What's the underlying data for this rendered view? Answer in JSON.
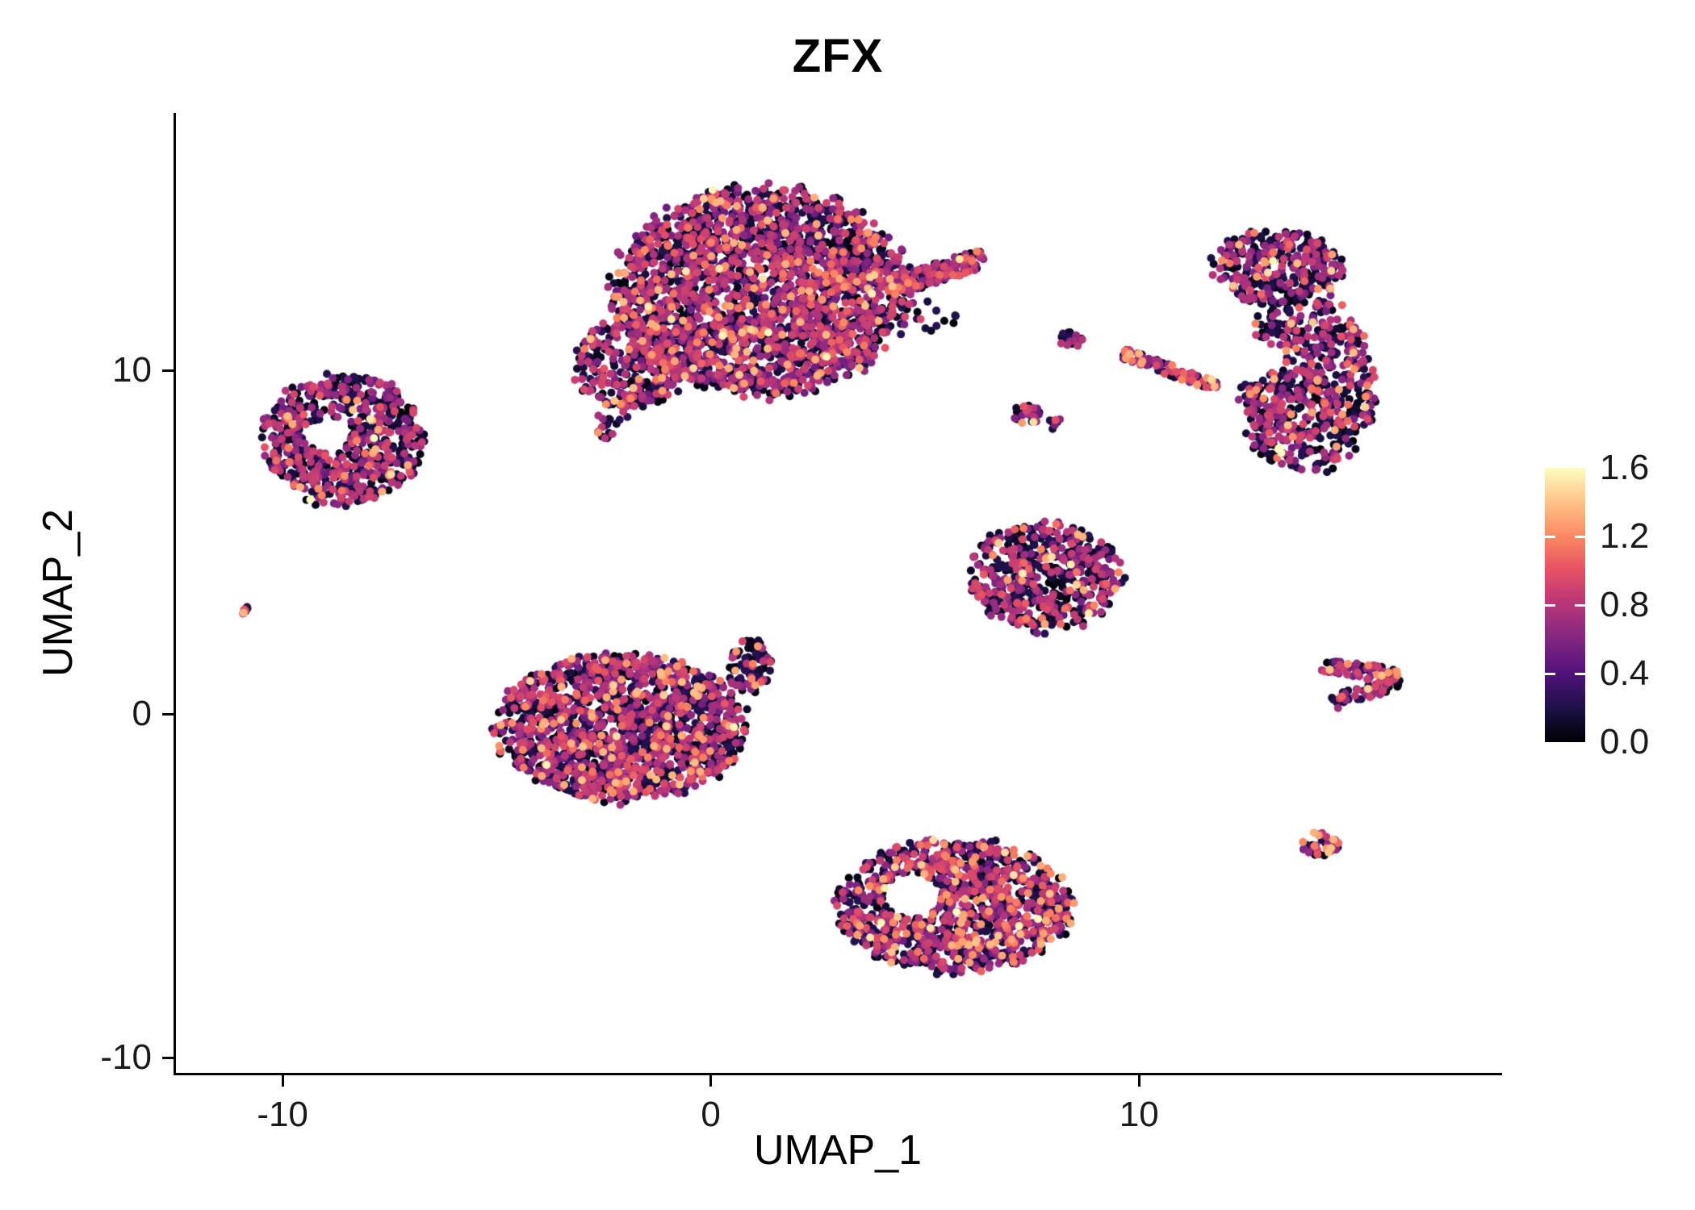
{
  "chart_data": {
    "type": "scatter",
    "title": "ZFX",
    "xlabel": "UMAP_1",
    "ylabel": "UMAP_2",
    "xlim": [
      -12.49,
      18.42
    ],
    "ylim": [
      -10.44,
      17.49
    ],
    "grid": false,
    "legend_position": "right",
    "x_ticks": [
      {
        "value": -10,
        "label": "-10"
      },
      {
        "value": 0,
        "label": "0"
      },
      {
        "value": 10,
        "label": "10"
      }
    ],
    "y_ticks": [
      {
        "value": -10,
        "label": "-10"
      },
      {
        "value": 0,
        "label": "0"
      },
      {
        "value": 10,
        "label": "10"
      }
    ],
    "point_radius_px": 5,
    "colorbar": {
      "min": 0.0,
      "max": 1.6,
      "ticks": [
        {
          "value": 0.0,
          "label": "0.0"
        },
        {
          "value": 0.4,
          "label": "0.4"
        },
        {
          "value": 0.8,
          "label": "0.8"
        },
        {
          "value": 1.2,
          "label": "1.2"
        },
        {
          "value": 1.6,
          "label": "1.6"
        }
      ],
      "colormap": "magma",
      "stops": [
        [
          0.0,
          "#000004"
        ],
        [
          0.125,
          "#1d1147"
        ],
        [
          0.25,
          "#51127c"
        ],
        [
          0.375,
          "#822681"
        ],
        [
          0.5,
          "#b63679"
        ],
        [
          0.625,
          "#e55064"
        ],
        [
          0.75,
          "#fb8861"
        ],
        [
          0.875,
          "#fec287"
        ],
        [
          1.0,
          "#fcfdbf"
        ]
      ]
    },
    "clusters": [
      {
        "name": "top-main",
        "type": "blob",
        "cx": 1.2,
        "cy": 12.3,
        "rx": 3.4,
        "ry": 3.0,
        "n": 2600,
        "expr": {
          "p_zero": 0.5,
          "p_mid": 0.42,
          "p_high": 0.08
        }
      },
      {
        "name": "top-left-lobe",
        "type": "blob",
        "cx": -1.9,
        "cy": 10.2,
        "rx": 1.3,
        "ry": 1.3,
        "n": 260,
        "expr": {
          "p_zero": 0.5,
          "p_mid": 0.42,
          "p_high": 0.08
        }
      },
      {
        "name": "top-tip",
        "type": "line",
        "x1": -1.2,
        "y1": 9.9,
        "x2": -2.7,
        "y2": 8.2,
        "w": 0.35,
        "n": 60,
        "expr": {
          "p_zero": 0.55,
          "p_mid": 0.38,
          "p_high": 0.07
        }
      },
      {
        "name": "top-arm",
        "type": "line",
        "x1": 4.2,
        "y1": 12.4,
        "x2": 6.4,
        "y2": 13.3,
        "w": 0.28,
        "n": 130,
        "expr": {
          "p_zero": 0.4,
          "p_mid": 0.45,
          "p_high": 0.15
        }
      },
      {
        "name": "top-stray-dots",
        "type": "blob",
        "cx": 5.3,
        "cy": 11.6,
        "rx": 0.6,
        "ry": 0.45,
        "n": 12,
        "expr": {
          "p_zero": 0.85,
          "p_mid": 0.15,
          "p_high": 0.0
        }
      },
      {
        "name": "left",
        "type": "blob",
        "cx": -8.6,
        "cy": 8.0,
        "rx": 1.85,
        "ry": 1.9,
        "n": 680,
        "hole": {
          "cx": -8.95,
          "cy": 8.1,
          "r": 0.5
        },
        "expr": {
          "p_zero": 0.52,
          "p_mid": 0.4,
          "p_high": 0.08
        }
      },
      {
        "name": "far-left-dot",
        "type": "blob",
        "cx": -10.85,
        "cy": 3.0,
        "rx": 0.18,
        "ry": 0.15,
        "n": 7,
        "expr": {
          "p_zero": 0.25,
          "p_mid": 0.3,
          "p_high": 0.45
        }
      },
      {
        "name": "mid-left",
        "type": "blob",
        "cx": -2.1,
        "cy": -0.4,
        "rx": 2.9,
        "ry": 2.1,
        "n": 1600,
        "expr": {
          "p_zero": 0.52,
          "p_mid": 0.38,
          "p_high": 0.1
        }
      },
      {
        "name": "mid-left-tip",
        "type": "blob",
        "cx": 0.9,
        "cy": 1.4,
        "rx": 0.55,
        "ry": 0.75,
        "n": 100,
        "expr": {
          "p_zero": 0.62,
          "p_mid": 0.33,
          "p_high": 0.05
        }
      },
      {
        "name": "bottom",
        "type": "blob",
        "cx": 5.7,
        "cy": -5.6,
        "rx": 2.7,
        "ry": 1.9,
        "n": 1150,
        "hole": {
          "cx": 4.7,
          "cy": -5.3,
          "r": 0.65
        },
        "expr": {
          "p_zero": 0.48,
          "p_mid": 0.38,
          "p_high": 0.14
        }
      },
      {
        "name": "mid-right",
        "type": "blob",
        "cx": 7.8,
        "cy": 4.0,
        "rx": 1.8,
        "ry": 1.6,
        "n": 560,
        "expr": {
          "p_zero": 0.54,
          "p_mid": 0.38,
          "p_high": 0.08
        }
      },
      {
        "name": "right-top-lobe",
        "type": "blob",
        "cx": 13.2,
        "cy": 13.0,
        "rx": 1.5,
        "ry": 1.1,
        "n": 330,
        "expr": {
          "p_zero": 0.55,
          "p_mid": 0.38,
          "p_high": 0.07
        }
      },
      {
        "name": "right-main",
        "type": "blob",
        "cx": 13.9,
        "cy": 9.6,
        "rx": 1.6,
        "ry": 2.6,
        "n": 620,
        "hole": {
          "cx": 12.5,
          "cy": 10.3,
          "r": 0.7
        },
        "expr": {
          "p_zero": 0.55,
          "p_mid": 0.38,
          "p_high": 0.07
        }
      },
      {
        "name": "mid-streak",
        "type": "line",
        "x1": 9.6,
        "y1": 10.5,
        "x2": 11.9,
        "y2": 9.5,
        "w": 0.16,
        "n": 90,
        "expr": {
          "p_zero": 0.35,
          "p_mid": 0.45,
          "p_high": 0.2
        }
      },
      {
        "name": "tiny-upper",
        "type": "blob",
        "cx": 8.4,
        "cy": 10.9,
        "rx": 0.3,
        "ry": 0.25,
        "n": 22,
        "expr": {
          "p_zero": 0.75,
          "p_mid": 0.2,
          "p_high": 0.05
        }
      },
      {
        "name": "tiny-lower",
        "type": "blob",
        "cx": 7.4,
        "cy": 8.7,
        "rx": 0.35,
        "ry": 0.3,
        "n": 26,
        "expr": {
          "p_zero": 0.6,
          "p_mid": 0.3,
          "p_high": 0.1
        }
      },
      {
        "name": "tiny-lower-b",
        "type": "blob",
        "cx": 8.05,
        "cy": 8.45,
        "rx": 0.18,
        "ry": 0.18,
        "n": 9,
        "expr": {
          "p_zero": 0.5,
          "p_mid": 0.4,
          "p_high": 0.1
        }
      },
      {
        "name": "chevron-upper",
        "type": "line",
        "x1": 14.3,
        "y1": 1.45,
        "x2": 16.1,
        "y2": 1.05,
        "w": 0.22,
        "n": 75,
        "expr": {
          "p_zero": 0.45,
          "p_mid": 0.45,
          "p_high": 0.1
        }
      },
      {
        "name": "chevron-lower",
        "type": "line",
        "x1": 14.55,
        "y1": 0.35,
        "x2": 16.05,
        "y2": 0.95,
        "w": 0.2,
        "n": 55,
        "expr": {
          "p_zero": 0.45,
          "p_mid": 0.45,
          "p_high": 0.1
        }
      },
      {
        "name": "small-bottom-right",
        "type": "blob",
        "cx": 14.2,
        "cy": -3.8,
        "rx": 0.45,
        "ry": 0.4,
        "n": 40,
        "expr": {
          "p_zero": 0.5,
          "p_mid": 0.32,
          "p_high": 0.18
        }
      }
    ]
  }
}
